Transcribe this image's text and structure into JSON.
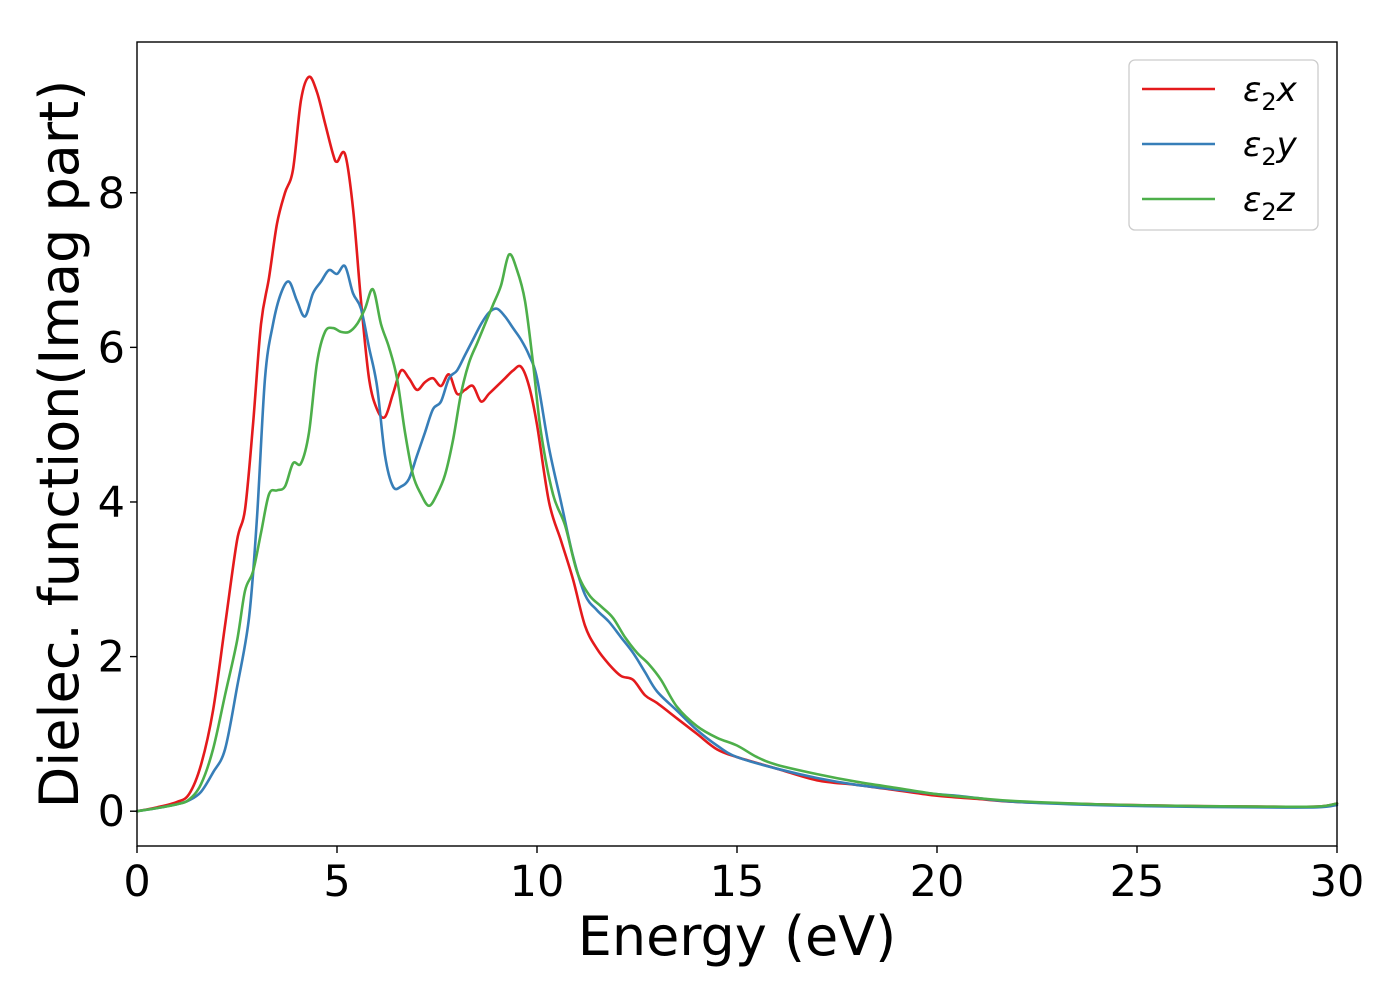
{
  "chart_data": {
    "type": "line",
    "title": "",
    "xlabel": "Energy (eV)",
    "ylabel": "Dielec. function(Imag part)",
    "xlim": [
      0,
      30
    ],
    "ylim": [
      -0.45,
      9.95
    ],
    "xticks": [
      "0",
      "5",
      "10",
      "15",
      "20",
      "25",
      "30"
    ],
    "yticks": [
      "0",
      "2",
      "4",
      "6",
      "8"
    ],
    "grid": false,
    "legend_position": "top-right",
    "series": [
      {
        "name": "ε2x",
        "color": "#e41a1c",
        "points": [
          [
            0,
            0
          ],
          [
            0.5,
            0.05
          ],
          [
            1.0,
            0.12
          ],
          [
            1.3,
            0.22
          ],
          [
            1.6,
            0.6
          ],
          [
            1.9,
            1.3
          ],
          [
            2.2,
            2.4
          ],
          [
            2.5,
            3.5
          ],
          [
            2.7,
            3.9
          ],
          [
            2.9,
            5.0
          ],
          [
            3.1,
            6.3
          ],
          [
            3.3,
            6.9
          ],
          [
            3.5,
            7.6
          ],
          [
            3.7,
            8.0
          ],
          [
            3.9,
            8.3
          ],
          [
            4.1,
            9.2
          ],
          [
            4.3,
            9.5
          ],
          [
            4.5,
            9.3
          ],
          [
            4.7,
            8.9
          ],
          [
            4.9,
            8.5
          ],
          [
            5.0,
            8.4
          ],
          [
            5.2,
            8.5
          ],
          [
            5.4,
            7.8
          ],
          [
            5.6,
            6.6
          ],
          [
            5.8,
            5.6
          ],
          [
            6.0,
            5.2
          ],
          [
            6.2,
            5.1
          ],
          [
            6.4,
            5.4
          ],
          [
            6.6,
            5.7
          ],
          [
            6.8,
            5.6
          ],
          [
            7.0,
            5.45
          ],
          [
            7.2,
            5.55
          ],
          [
            7.4,
            5.6
          ],
          [
            7.6,
            5.5
          ],
          [
            7.8,
            5.65
          ],
          [
            8.0,
            5.4
          ],
          [
            8.2,
            5.45
          ],
          [
            8.4,
            5.5
          ],
          [
            8.6,
            5.3
          ],
          [
            8.8,
            5.4
          ],
          [
            9.0,
            5.5
          ],
          [
            9.2,
            5.6
          ],
          [
            9.4,
            5.7
          ],
          [
            9.6,
            5.75
          ],
          [
            9.8,
            5.5
          ],
          [
            10.0,
            5.0
          ],
          [
            10.3,
            4.0
          ],
          [
            10.6,
            3.5
          ],
          [
            10.9,
            3.0
          ],
          [
            11.2,
            2.4
          ],
          [
            11.5,
            2.1
          ],
          [
            11.8,
            1.9
          ],
          [
            12.1,
            1.75
          ],
          [
            12.4,
            1.7
          ],
          [
            12.7,
            1.5
          ],
          [
            13.0,
            1.4
          ],
          [
            13.5,
            1.2
          ],
          [
            14.0,
            1.0
          ],
          [
            14.5,
            0.8
          ],
          [
            15.0,
            0.7
          ],
          [
            16.0,
            0.55
          ],
          [
            17.0,
            0.4
          ],
          [
            18.0,
            0.34
          ],
          [
            19.0,
            0.27
          ],
          [
            20.0,
            0.2
          ],
          [
            21.0,
            0.16
          ],
          [
            22.0,
            0.12
          ],
          [
            24.0,
            0.09
          ],
          [
            26.0,
            0.07
          ],
          [
            28.0,
            0.06
          ],
          [
            29.5,
            0.06
          ],
          [
            30.0,
            0.1
          ]
        ]
      },
      {
        "name": "ε2y",
        "color": "#377eb8",
        "points": [
          [
            0,
            0
          ],
          [
            0.5,
            0.04
          ],
          [
            1.0,
            0.09
          ],
          [
            1.3,
            0.14
          ],
          [
            1.6,
            0.25
          ],
          [
            1.9,
            0.5
          ],
          [
            2.2,
            0.8
          ],
          [
            2.5,
            1.6
          ],
          [
            2.8,
            2.5
          ],
          [
            3.0,
            3.8
          ],
          [
            3.2,
            5.6
          ],
          [
            3.4,
            6.3
          ],
          [
            3.6,
            6.7
          ],
          [
            3.8,
            6.85
          ],
          [
            4.0,
            6.6
          ],
          [
            4.2,
            6.4
          ],
          [
            4.4,
            6.7
          ],
          [
            4.6,
            6.85
          ],
          [
            4.8,
            7.0
          ],
          [
            5.0,
            6.95
          ],
          [
            5.2,
            7.05
          ],
          [
            5.4,
            6.7
          ],
          [
            5.6,
            6.5
          ],
          [
            5.8,
            6.0
          ],
          [
            6.0,
            5.5
          ],
          [
            6.2,
            4.6
          ],
          [
            6.4,
            4.2
          ],
          [
            6.6,
            4.2
          ],
          [
            6.8,
            4.3
          ],
          [
            7.0,
            4.6
          ],
          [
            7.2,
            4.9
          ],
          [
            7.4,
            5.2
          ],
          [
            7.6,
            5.3
          ],
          [
            7.8,
            5.6
          ],
          [
            8.0,
            5.7
          ],
          [
            8.2,
            5.9
          ],
          [
            8.4,
            6.1
          ],
          [
            8.6,
            6.3
          ],
          [
            8.8,
            6.45
          ],
          [
            9.0,
            6.5
          ],
          [
            9.2,
            6.4
          ],
          [
            9.4,
            6.25
          ],
          [
            9.6,
            6.1
          ],
          [
            9.8,
            5.9
          ],
          [
            10.0,
            5.6
          ],
          [
            10.3,
            4.7
          ],
          [
            10.6,
            4.0
          ],
          [
            10.9,
            3.3
          ],
          [
            11.2,
            2.8
          ],
          [
            11.5,
            2.6
          ],
          [
            11.8,
            2.45
          ],
          [
            12.1,
            2.25
          ],
          [
            12.4,
            2.05
          ],
          [
            12.7,
            1.8
          ],
          [
            13.0,
            1.55
          ],
          [
            13.5,
            1.3
          ],
          [
            14.0,
            1.05
          ],
          [
            14.5,
            0.85
          ],
          [
            15.0,
            0.7
          ],
          [
            16.0,
            0.55
          ],
          [
            17.0,
            0.43
          ],
          [
            18.0,
            0.34
          ],
          [
            19.0,
            0.28
          ],
          [
            20.0,
            0.22
          ],
          [
            20.5,
            0.2
          ],
          [
            21.0,
            0.17
          ],
          [
            22.0,
            0.12
          ],
          [
            24.0,
            0.08
          ],
          [
            26.0,
            0.06
          ],
          [
            28.0,
            0.05
          ],
          [
            29.5,
            0.05
          ],
          [
            30.0,
            0.08
          ]
        ]
      },
      {
        "name": "ε2z",
        "color": "#4daf4a",
        "points": [
          [
            0,
            0
          ],
          [
            0.5,
            0.04
          ],
          [
            1.0,
            0.09
          ],
          [
            1.3,
            0.15
          ],
          [
            1.6,
            0.35
          ],
          [
            1.9,
            0.8
          ],
          [
            2.2,
            1.5
          ],
          [
            2.5,
            2.2
          ],
          [
            2.7,
            2.85
          ],
          [
            2.9,
            3.1
          ],
          [
            3.1,
            3.6
          ],
          [
            3.3,
            4.1
          ],
          [
            3.5,
            4.15
          ],
          [
            3.7,
            4.2
          ],
          [
            3.9,
            4.5
          ],
          [
            4.1,
            4.5
          ],
          [
            4.3,
            4.9
          ],
          [
            4.5,
            5.8
          ],
          [
            4.7,
            6.2
          ],
          [
            4.9,
            6.25
          ],
          [
            5.1,
            6.2
          ],
          [
            5.3,
            6.2
          ],
          [
            5.5,
            6.3
          ],
          [
            5.7,
            6.5
          ],
          [
            5.9,
            6.75
          ],
          [
            6.1,
            6.3
          ],
          [
            6.3,
            6.0
          ],
          [
            6.5,
            5.6
          ],
          [
            6.7,
            4.9
          ],
          [
            6.9,
            4.35
          ],
          [
            7.1,
            4.1
          ],
          [
            7.3,
            3.95
          ],
          [
            7.5,
            4.1
          ],
          [
            7.7,
            4.35
          ],
          [
            7.9,
            4.8
          ],
          [
            8.1,
            5.4
          ],
          [
            8.3,
            5.8
          ],
          [
            8.5,
            6.05
          ],
          [
            8.7,
            6.3
          ],
          [
            8.9,
            6.55
          ],
          [
            9.1,
            6.8
          ],
          [
            9.3,
            7.2
          ],
          [
            9.5,
            7.0
          ],
          [
            9.7,
            6.6
          ],
          [
            9.9,
            5.8
          ],
          [
            10.1,
            4.9
          ],
          [
            10.4,
            4.1
          ],
          [
            10.7,
            3.7
          ],
          [
            11.0,
            3.1
          ],
          [
            11.3,
            2.8
          ],
          [
            11.6,
            2.65
          ],
          [
            11.9,
            2.5
          ],
          [
            12.2,
            2.25
          ],
          [
            12.5,
            2.05
          ],
          [
            12.8,
            1.9
          ],
          [
            13.1,
            1.7
          ],
          [
            13.5,
            1.35
          ],
          [
            14.0,
            1.1
          ],
          [
            14.5,
            0.95
          ],
          [
            15.0,
            0.85
          ],
          [
            15.5,
            0.7
          ],
          [
            16.0,
            0.6
          ],
          [
            17.0,
            0.48
          ],
          [
            18.0,
            0.38
          ],
          [
            19.0,
            0.3
          ],
          [
            20.0,
            0.22
          ],
          [
            21.0,
            0.17
          ],
          [
            22.0,
            0.13
          ],
          [
            24.0,
            0.09
          ],
          [
            26.0,
            0.07
          ],
          [
            28.0,
            0.06
          ],
          [
            29.5,
            0.06
          ],
          [
            30.0,
            0.1
          ]
        ]
      }
    ],
    "legend": {
      "entries": [
        {
          "base": "ε",
          "sub": "2",
          "var": "x"
        },
        {
          "base": "ε",
          "sub": "2",
          "var": "y"
        },
        {
          "base": "ε",
          "sub": "2",
          "var": "z"
        }
      ]
    }
  }
}
